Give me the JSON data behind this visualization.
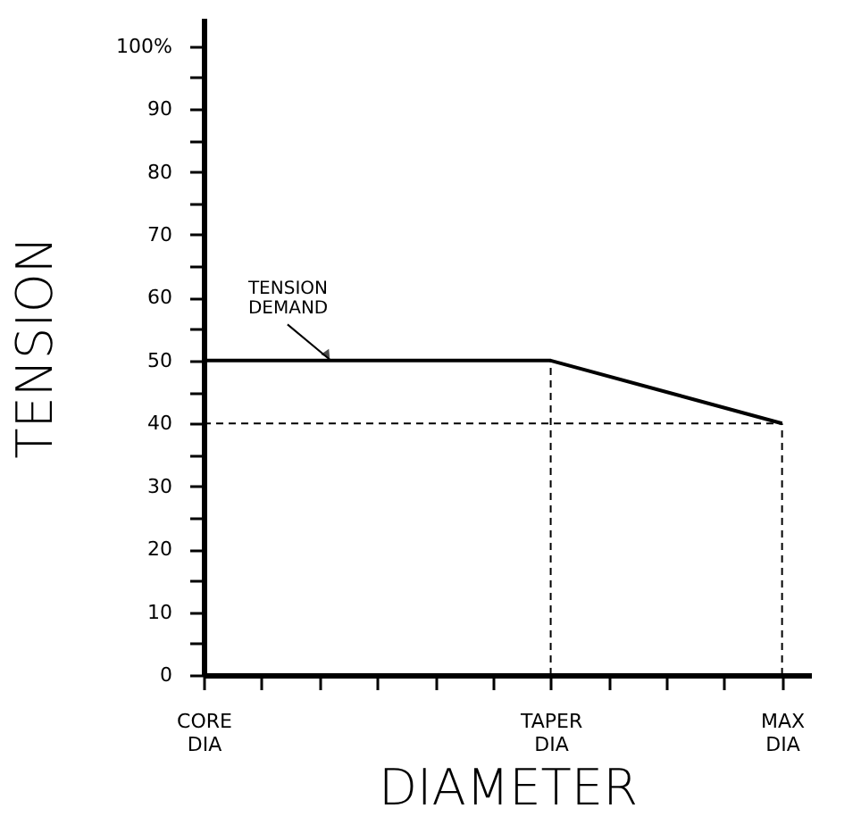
{
  "chart_data": {
    "type": "line",
    "xlabel": "DIAMETER",
    "ylabel": "TENSION",
    "categories": [
      "CORE DIA",
      null,
      null,
      null,
      null,
      null,
      "TAPER DIA",
      null,
      null,
      null,
      "MAX DIA"
    ],
    "ylim": [
      0,
      104.5
    ],
    "yticks": [
      0,
      {
        "value": 5,
        "label": null
      },
      10,
      {
        "value": 15,
        "label": null
      },
      20,
      {
        "value": 25,
        "label": null
      },
      30,
      {
        "value": 35,
        "label": null
      },
      40,
      {
        "value": 45,
        "label": null
      },
      50,
      {
        "value": 55,
        "label": null
      },
      60,
      {
        "value": 65,
        "label": null
      },
      70,
      {
        "value": 75,
        "label": null
      },
      80,
      {
        "value": 85,
        "label": null
      },
      90,
      {
        "value": 95,
        "label": null
      },
      {
        "value": 100,
        "label": "100%"
      }
    ],
    "series": [
      {
        "color": "#000000",
        "x": [
          "CORE DIA",
          "TAPER DIA",
          "MAX DIA"
        ],
        "values": [
          50,
          50,
          40
        ],
        "line_style": "solid"
      },
      {
        "color": "#000000",
        "x": [
          "TAPER DIA",
          "TAPER DIA"
        ],
        "values": [
          0,
          50
        ],
        "line_style": "dashed"
      },
      {
        "color": "#000000",
        "x": [
          "MAX DIA",
          "MAX DIA"
        ],
        "values": [
          0,
          40
        ],
        "line_style": "dashed"
      },
      {
        "color": "#000000",
        "x": [
          "CORE DIA",
          "MAX DIA"
        ],
        "values": [
          40,
          40
        ],
        "line_style": "dashed"
      }
    ],
    "annotations": [
      {
        "text": "TENSION DEMAND",
        "y": 50
      }
    ],
    "marker": "none"
  }
}
